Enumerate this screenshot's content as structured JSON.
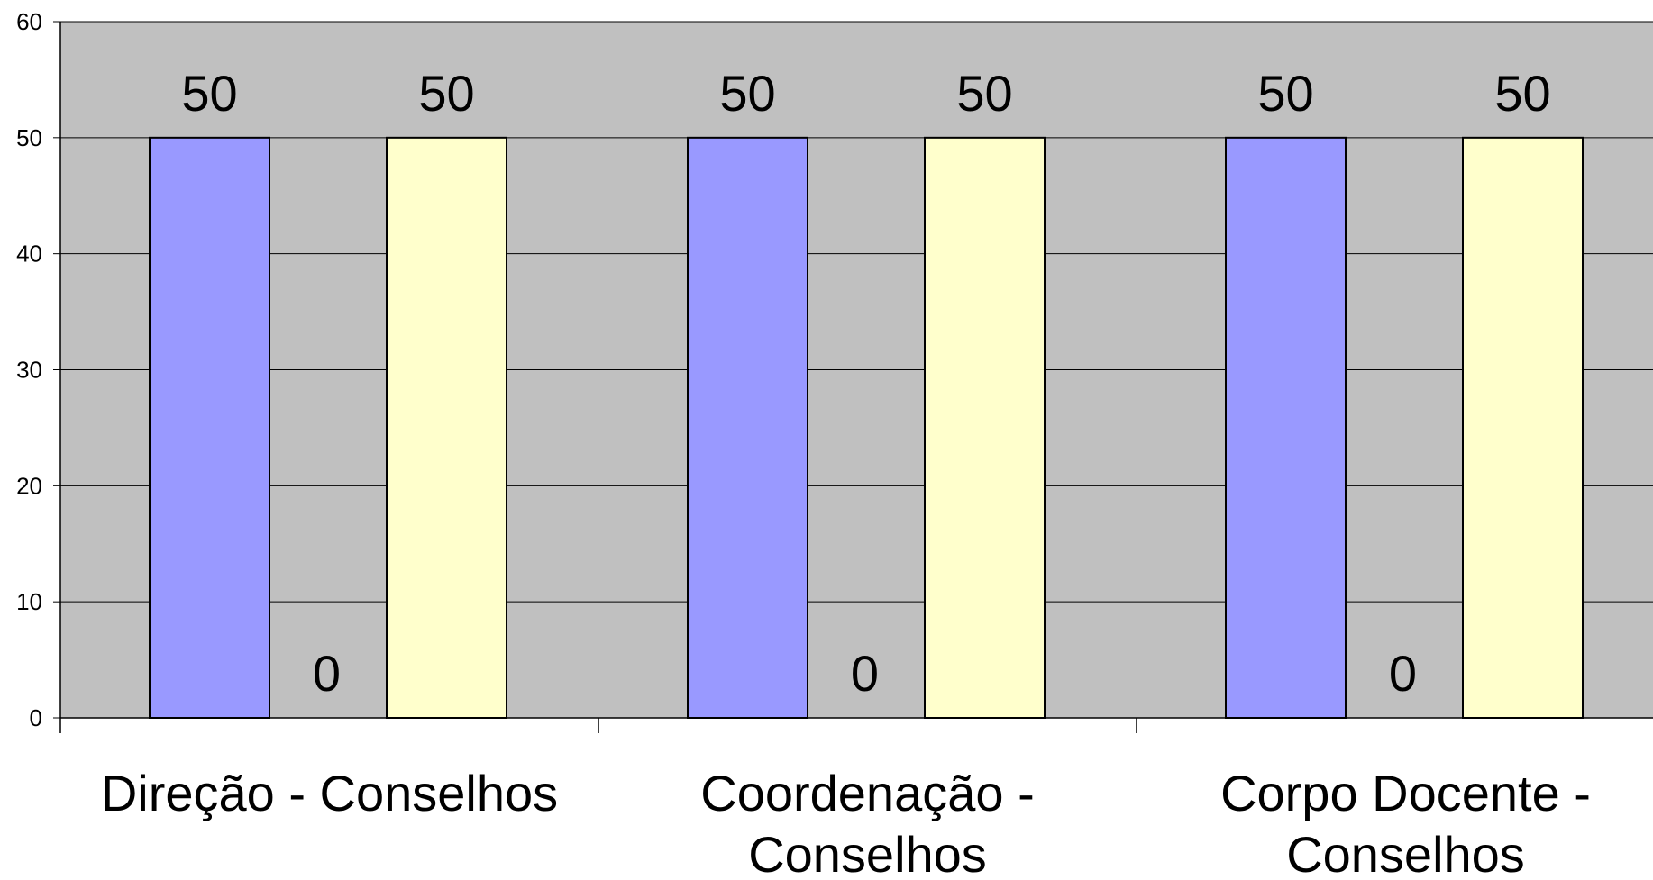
{
  "chart_data": {
    "type": "bar",
    "categories": [
      [
        "Direção - Conselhos"
      ],
      [
        "Coordenação -",
        "Conselhos"
      ],
      [
        "Corpo Docente -",
        "Conselhos"
      ]
    ],
    "series": [
      {
        "values": [
          50,
          50,
          50
        ],
        "color": "#9999ff"
      },
      {
        "values": [
          0,
          0,
          0
        ],
        "color": "#993366"
      },
      {
        "values": [
          50,
          50,
          50
        ],
        "color": "#ffffcc"
      }
    ],
    "ylim": [
      0,
      60
    ],
    "yticks": [
      0,
      10,
      20,
      30,
      40,
      50,
      60
    ],
    "grid": true,
    "plot_background": "#c0c0c0",
    "data_labels": true
  }
}
